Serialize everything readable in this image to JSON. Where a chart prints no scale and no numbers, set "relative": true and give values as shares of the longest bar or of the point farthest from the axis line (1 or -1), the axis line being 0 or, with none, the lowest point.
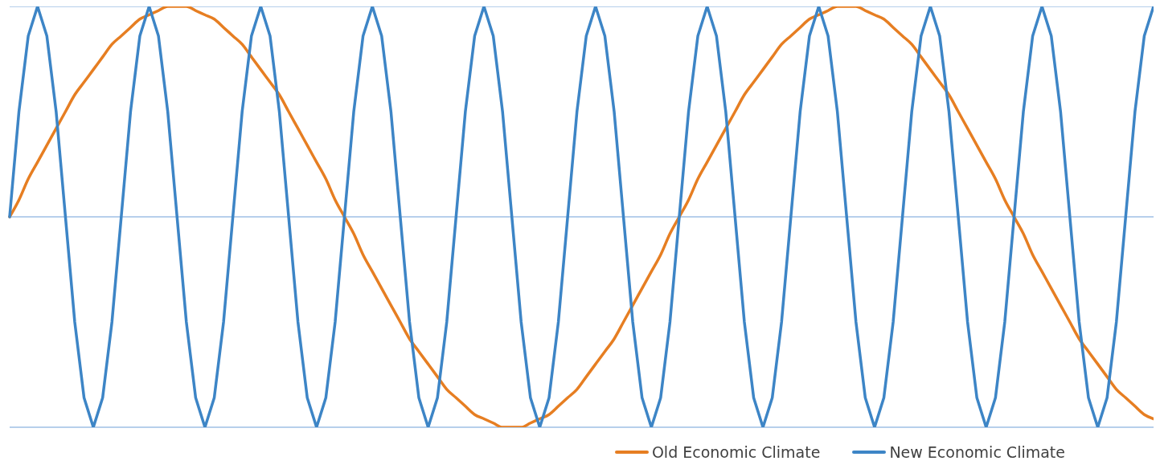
{
  "chart_data": {
    "type": "line",
    "relative": true,
    "ref_lines": [
      {
        "axis": "y",
        "value": 0.5,
        "color": "#6f9fd8"
      }
    ],
    "grid": "y",
    "legend": "bottom right",
    "marker": "none",
    "line_style": "solid",
    "categories": [
      null,
      null,
      null,
      null,
      null,
      null,
      null,
      null,
      null,
      null,
      null,
      null,
      null,
      null,
      null,
      null,
      null,
      null,
      null,
      null,
      null,
      null,
      null,
      null,
      null,
      null,
      null,
      null,
      null,
      null,
      null,
      null,
      null,
      null,
      null,
      null,
      null,
      null,
      null,
      null,
      null,
      null,
      null,
      null,
      null,
      null,
      null,
      null,
      null,
      null,
      null,
      null,
      null,
      null,
      null,
      null,
      null,
      null,
      null,
      null,
      null,
      null,
      null,
      null,
      null,
      null,
      null,
      null,
      null,
      null,
      null,
      null,
      null,
      null,
      null,
      null,
      null,
      null,
      null,
      null,
      null,
      null,
      null,
      null,
      null,
      null,
      null,
      null,
      null,
      null,
      null,
      null,
      null,
      null,
      null,
      null,
      null,
      null,
      null,
      null,
      null,
      null,
      null,
      null,
      null,
      null,
      null,
      null,
      null,
      null,
      null,
      null,
      null,
      null,
      null,
      null,
      null,
      null,
      null,
      null,
      null,
      null,
      null,
      null
    ],
    "series": [
      {
        "name": "Old Economic Climate",
        "color": "#e67e22",
        "values": [
          0.5,
          0.54,
          0.59,
          0.63,
          0.67,
          0.71,
          0.75,
          0.79,
          0.82,
          0.85,
          0.88,
          0.91,
          0.93,
          0.95,
          0.97,
          0.98,
          0.99,
          1,
          1,
          1,
          0.99,
          0.98,
          0.97,
          0.95,
          0.93,
          0.91,
          0.88,
          0.85,
          0.82,
          0.79,
          0.75,
          0.71,
          0.67,
          0.63,
          0.59,
          0.54,
          0.5,
          0.46,
          0.41,
          0.37,
          0.33,
          0.29,
          0.25,
          0.21,
          0.18,
          0.15,
          0.12,
          0.09,
          0.07,
          0.05,
          0.03,
          0.02,
          0.01,
          0,
          0,
          0,
          0.01,
          0.02,
          0.03,
          0.05,
          0.07,
          0.09,
          0.12,
          0.15,
          0.18,
          0.21,
          0.25,
          0.29,
          0.33,
          0.37,
          0.41,
          0.46,
          0.5,
          0.54,
          0.59,
          0.63,
          0.67,
          0.71,
          0.75,
          0.79,
          0.82,
          0.85,
          0.88,
          0.91,
          0.93,
          0.95,
          0.97,
          0.98,
          0.99,
          1,
          1,
          1,
          0.99,
          0.98,
          0.97,
          0.95,
          0.93,
          0.91,
          0.88,
          0.85,
          0.82,
          0.79,
          0.75,
          0.71,
          0.67,
          0.63,
          0.59,
          0.54,
          0.5,
          0.46,
          0.41,
          0.37,
          0.33,
          0.29,
          0.25,
          0.21,
          0.18,
          0.15,
          0.12,
          0.09,
          0.07,
          0.05,
          0.03,
          0.02
        ]
      },
      {
        "name": "New Economic Climate",
        "color": "#3d85c6",
        "values": [
          0.5,
          0.75,
          0.93,
          1,
          0.93,
          0.75,
          0.5,
          0.25,
          0.07,
          0,
          0.07,
          0.25,
          0.5,
          0.75,
          0.93,
          1,
          0.93,
          0.75,
          0.5,
          0.25,
          0.07,
          0,
          0.07,
          0.25,
          0.5,
          0.75,
          0.93,
          1,
          0.93,
          0.75,
          0.5,
          0.25,
          0.07,
          0,
          0.07,
          0.25,
          0.5,
          0.75,
          0.93,
          1,
          0.93,
          0.75,
          0.5,
          0.25,
          0.07,
          0,
          0.07,
          0.25,
          0.5,
          0.75,
          0.93,
          1,
          0.93,
          0.75,
          0.5,
          0.25,
          0.07,
          0,
          0.07,
          0.25,
          0.5,
          0.75,
          0.93,
          1,
          0.93,
          0.75,
          0.5,
          0.25,
          0.07,
          0,
          0.07,
          0.25,
          0.5,
          0.75,
          0.93,
          1,
          0.93,
          0.75,
          0.5,
          0.25,
          0.07,
          0,
          0.07,
          0.25,
          0.5,
          0.75,
          0.93,
          1,
          0.93,
          0.75,
          0.5,
          0.25,
          0.07,
          0,
          0.07,
          0.25,
          0.5,
          0.75,
          0.93,
          1,
          0.93,
          0.75,
          0.5,
          0.25,
          0.07,
          0,
          0.07,
          0.25,
          0.5,
          0.75,
          0.93,
          1,
          0.93,
          0.75,
          0.5,
          0.25,
          0.07,
          0,
          0.07,
          0.25,
          0.5,
          0.75,
          0.93,
          1
        ]
      }
    ]
  }
}
